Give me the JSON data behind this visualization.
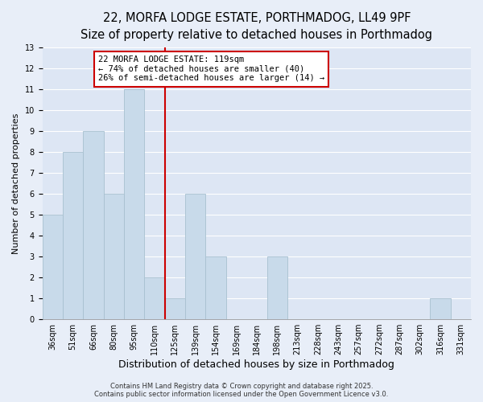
{
  "title_line1": "22, MORFA LODGE ESTATE, PORTHMADOG, LL49 9PF",
  "title_line2": "Size of property relative to detached houses in Porthmadog",
  "categories": [
    "36sqm",
    "51sqm",
    "66sqm",
    "80sqm",
    "95sqm",
    "110sqm",
    "125sqm",
    "139sqm",
    "154sqm",
    "169sqm",
    "184sqm",
    "198sqm",
    "213sqm",
    "228sqm",
    "243sqm",
    "257sqm",
    "272sqm",
    "287sqm",
    "302sqm",
    "316sqm",
    "331sqm"
  ],
  "values": [
    5,
    8,
    9,
    6,
    11,
    2,
    1,
    6,
    3,
    0,
    0,
    3,
    0,
    0,
    0,
    0,
    0,
    0,
    0,
    1,
    0
  ],
  "bar_color": "#c8daea",
  "bar_edge_color": "#a8c0d0",
  "vline_x_idx": 6,
  "vline_color": "#cc0000",
  "xlabel": "Distribution of detached houses by size in Porthmadog",
  "ylabel": "Number of detached properties",
  "ylim": [
    0,
    13
  ],
  "yticks": [
    0,
    1,
    2,
    3,
    4,
    5,
    6,
    7,
    8,
    9,
    10,
    11,
    12,
    13
  ],
  "background_color": "#e8eef8",
  "plot_bg_color": "#dde6f4",
  "grid_color": "#ffffff",
  "annotation_title": "22 MORFA LODGE ESTATE: 119sqm",
  "annotation_line2": "← 74% of detached houses are smaller (40)",
  "annotation_line3": "26% of semi-detached houses are larger (14) →",
  "annotation_box_color": "#ffffff",
  "annotation_box_edge": "#cc0000",
  "footer_line1": "Contains HM Land Registry data © Crown copyright and database right 2025.",
  "footer_line2": "Contains public sector information licensed under the Open Government Licence v3.0.",
  "title_fontsize": 10.5,
  "subtitle_fontsize": 9.5,
  "xlabel_fontsize": 9,
  "ylabel_fontsize": 8,
  "tick_fontsize": 7,
  "annotation_fontsize": 7.5,
  "footer_fontsize": 6
}
